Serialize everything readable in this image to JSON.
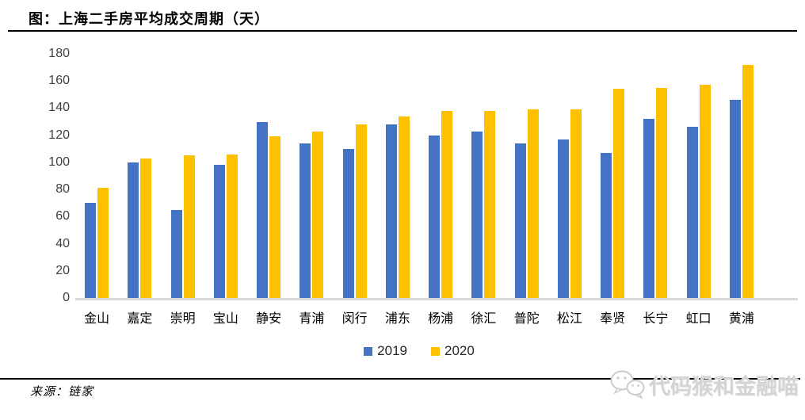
{
  "title": "图：上海二手房平均成交周期（天）",
  "source": {
    "label": "来源：链家"
  },
  "watermark": {
    "label": "代码猴和金融喵",
    "icon": "wechat-icon",
    "color": "#d4d4d4"
  },
  "colors": {
    "series_2019": "#4472C4",
    "series_2020": "#FFC000",
    "axis_baseline": "#D9D9D9",
    "divider": "#000000",
    "tick_text": "#3F3F3F"
  },
  "legend": {
    "position": "bottom",
    "entries": [
      "2019",
      "2020"
    ]
  },
  "chart_data": {
    "type": "bar",
    "title": "图：上海二手房平均成交周期（天）",
    "xlabel": "",
    "ylabel": "",
    "ylim": [
      0,
      180
    ],
    "yticks": [
      0,
      20,
      40,
      60,
      80,
      100,
      120,
      140,
      160,
      180
    ],
    "grid": false,
    "legend_position": "bottom",
    "categories": [
      "金山",
      "嘉定",
      "崇明",
      "宝山",
      "静安",
      "青浦",
      "闵行",
      "浦东",
      "杨浦",
      "徐汇",
      "普陀",
      "松江",
      "奉贤",
      "长宁",
      "虹口",
      "黄浦"
    ],
    "series": [
      {
        "name": "2019",
        "color": "#4472C4",
        "values": [
          70,
          100,
          65,
          98,
          130,
          114,
          110,
          128,
          120,
          123,
          114,
          117,
          107,
          132,
          126,
          146
        ]
      },
      {
        "name": "2020",
        "color": "#FFC000",
        "values": [
          81,
          103,
          105,
          106,
          119,
          123,
          128,
          134,
          138,
          138,
          139,
          139,
          154,
          155,
          157,
          172
        ]
      }
    ]
  }
}
